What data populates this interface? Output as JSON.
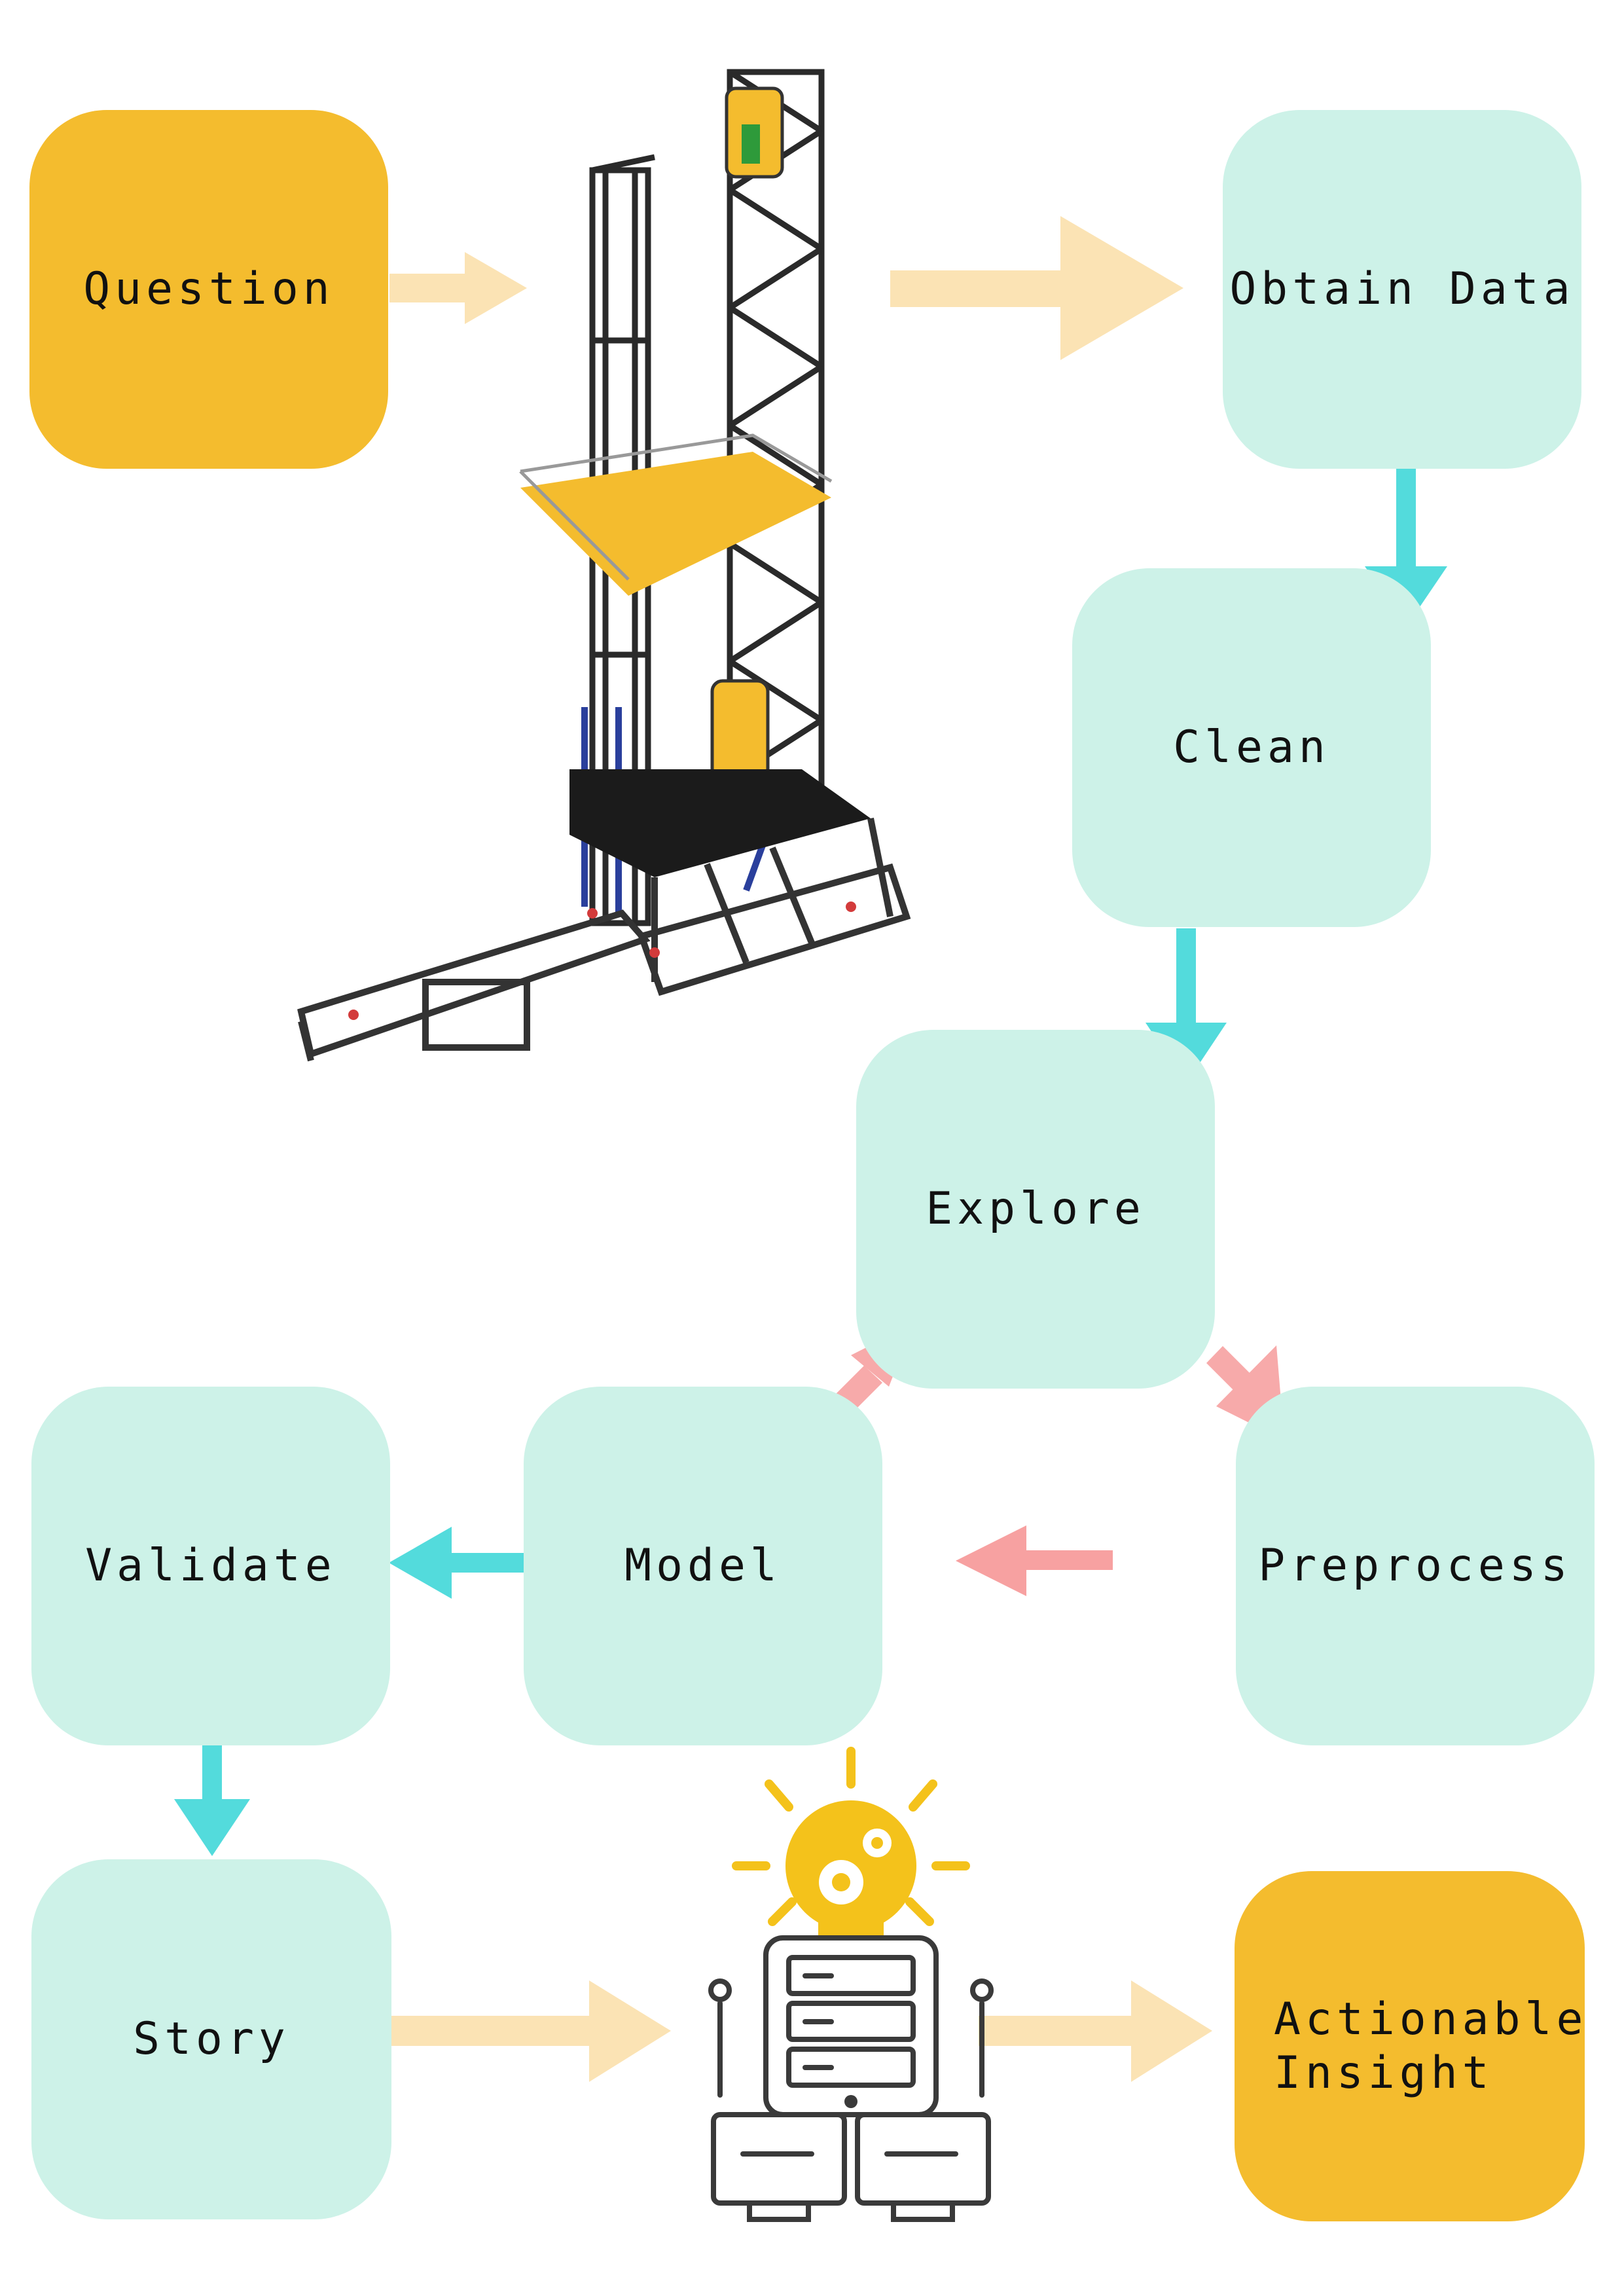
{
  "diagram": {
    "nodes": {
      "question": "Question",
      "obtain_data": "Obtain Data",
      "clean": "Clean",
      "explore": "Explore",
      "preprocess": "Preprocess",
      "model": "Model",
      "validate": "Validate",
      "story": "Story",
      "actionable_insight": "Actionable\nInsight"
    },
    "colors": {
      "teal_box": "#cdf2e8",
      "gold_box": "#f4bc2e",
      "beige_arrow": "#fbe3b4",
      "cyan_arrow": "#53dbdc",
      "pink_arrow": "#f7a1a1"
    },
    "images": {
      "rig": "drilling-rig-illustration",
      "server": "server-lightbulb-illustration"
    }
  }
}
